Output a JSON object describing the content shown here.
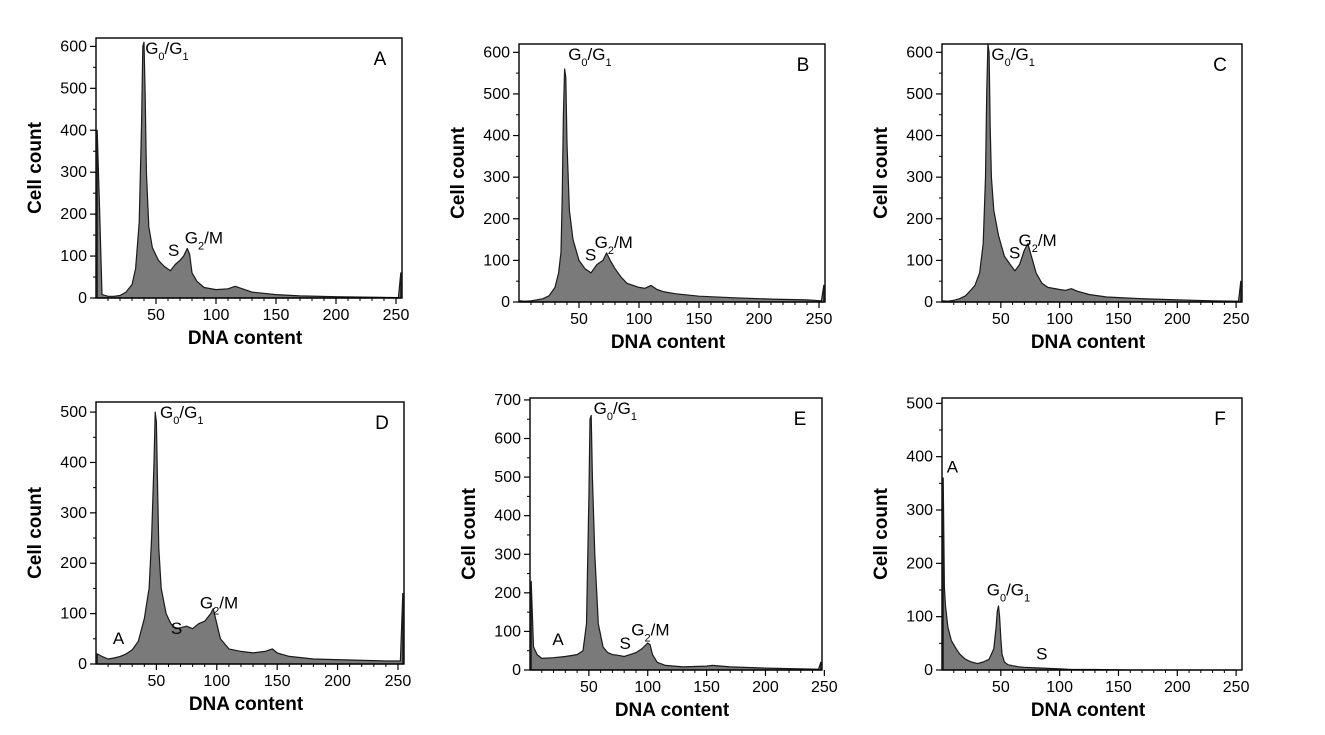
{
  "figure": {
    "colors": {
      "fill": "#7a7a7a",
      "edge": "#1a1a1a",
      "frame": "#000000",
      "background": "#ffffff"
    }
  },
  "chart_data": [
    {
      "panel": "A",
      "type": "area",
      "xlabel": "DNA content",
      "ylabel": "Cell count",
      "xlim": [
        0,
        255
      ],
      "ylim": [
        0,
        620
      ],
      "xticks": [
        50,
        100,
        150,
        200,
        250
      ],
      "yticks": [
        0,
        100,
        200,
        300,
        400,
        500,
        600
      ],
      "x": [
        1,
        3,
        5,
        10,
        15,
        20,
        25,
        30,
        33,
        36,
        38,
        39,
        40,
        41,
        42,
        44,
        47,
        52,
        57,
        62,
        66,
        70,
        73,
        76,
        78,
        80,
        84,
        90,
        100,
        110,
        116,
        122,
        130,
        150,
        170,
        200,
        230,
        252,
        254
      ],
      "y": [
        400,
        210,
        8,
        4,
        4,
        6,
        14,
        32,
        70,
        180,
        420,
        600,
        610,
        480,
        300,
        170,
        120,
        90,
        75,
        65,
        80,
        90,
        100,
        118,
        105,
        60,
        40,
        25,
        20,
        22,
        28,
        22,
        14,
        8,
        5,
        3,
        2,
        1,
        60
      ],
      "annotations": [
        {
          "text": "G0/G1",
          "x": 41,
          "y": 600,
          "parts": [
            [
              "G",
              ""
            ],
            [
              "0",
              "sub"
            ],
            [
              "/G",
              ""
            ],
            [
              "1",
              "sub"
            ]
          ]
        },
        {
          "text": "S",
          "x": 60,
          "y": 100,
          "parts": [
            [
              "S",
              ""
            ]
          ]
        },
        {
          "text": "G2/M",
          "x": 74,
          "y": 130,
          "parts": [
            [
              "G",
              ""
            ],
            [
              "2",
              "sub"
            ],
            [
              "/M",
              ""
            ]
          ]
        }
      ]
    },
    {
      "panel": "B",
      "type": "area",
      "xlabel": "DNA content",
      "ylabel": "Cell count",
      "xlim": [
        0,
        255
      ],
      "ylim": [
        0,
        620
      ],
      "xticks": [
        50,
        100,
        150,
        200,
        250
      ],
      "yticks": [
        0,
        100,
        200,
        300,
        400,
        500,
        600
      ],
      "x": [
        1,
        5,
        10,
        15,
        20,
        25,
        30,
        33,
        35,
        36,
        37,
        38,
        39,
        40,
        42,
        45,
        50,
        55,
        60,
        65,
        70,
        73,
        76,
        80,
        85,
        90,
        100,
        105,
        110,
        115,
        120,
        130,
        150,
        180,
        210,
        240,
        252,
        254
      ],
      "y": [
        3,
        2,
        3,
        5,
        8,
        15,
        35,
        70,
        120,
        250,
        450,
        560,
        540,
        380,
        220,
        150,
        100,
        80,
        70,
        90,
        100,
        118,
        100,
        80,
        60,
        45,
        35,
        33,
        40,
        30,
        25,
        20,
        14,
        10,
        7,
        5,
        3,
        40
      ],
      "annotations": [
        {
          "text": "G0/G1",
          "x": 41,
          "y": 600,
          "parts": [
            [
              "G",
              ""
            ],
            [
              "0",
              "sub"
            ],
            [
              "/G",
              ""
            ],
            [
              "1",
              "sub"
            ]
          ]
        },
        {
          "text": "S",
          "x": 55,
          "y": 100,
          "parts": [
            [
              "S",
              ""
            ]
          ]
        },
        {
          "text": "G2/M",
          "x": 63,
          "y": 130,
          "parts": [
            [
              "G",
              ""
            ],
            [
              "2",
              "sub"
            ],
            [
              "/M",
              ""
            ]
          ]
        }
      ]
    },
    {
      "panel": "C",
      "type": "area",
      "xlabel": "DNA content",
      "ylabel": "Cell count",
      "xlim": [
        0,
        255
      ],
      "ylim": [
        0,
        620
      ],
      "xticks": [
        50,
        100,
        150,
        200,
        250
      ],
      "yticks": [
        0,
        100,
        200,
        300,
        400,
        500,
        600
      ],
      "x": [
        1,
        5,
        10,
        15,
        20,
        25,
        28,
        32,
        35,
        37,
        38,
        39,
        40,
        41,
        42,
        44,
        48,
        53,
        58,
        62,
        66,
        70,
        73,
        76,
        80,
        85,
        90,
        100,
        105,
        110,
        115,
        125,
        140,
        170,
        200,
        230,
        252,
        254
      ],
      "y": [
        3,
        2,
        4,
        8,
        15,
        30,
        40,
        70,
        140,
        300,
        500,
        620,
        600,
        420,
        300,
        220,
        160,
        110,
        90,
        75,
        90,
        125,
        140,
        110,
        70,
        45,
        35,
        30,
        28,
        32,
        26,
        18,
        12,
        8,
        5,
        3,
        2,
        50
      ],
      "annotations": [
        {
          "text": "G0/G1",
          "x": 42,
          "y": 600,
          "parts": [
            [
              "G",
              ""
            ],
            [
              "0",
              "sub"
            ],
            [
              "/G",
              ""
            ],
            [
              "1",
              "sub"
            ]
          ]
        },
        {
          "text": "S",
          "x": 57,
          "y": 105,
          "parts": [
            [
              "S",
              ""
            ]
          ]
        },
        {
          "text": "G2/M",
          "x": 65,
          "y": 135,
          "parts": [
            [
              "G",
              ""
            ],
            [
              "2",
              "sub"
            ],
            [
              "/M",
              ""
            ]
          ]
        }
      ]
    },
    {
      "panel": "D",
      "type": "area",
      "xlabel": "DNA content",
      "ylabel": "Cell count",
      "xlim": [
        0,
        255
      ],
      "ylim": [
        0,
        520
      ],
      "xticks": [
        50,
        100,
        150,
        200,
        250
      ],
      "yticks": [
        0,
        100,
        200,
        300,
        400,
        500
      ],
      "x": [
        1,
        5,
        10,
        15,
        20,
        25,
        30,
        35,
        40,
        44,
        46,
        48,
        49,
        50,
        51,
        52,
        54,
        58,
        62,
        66,
        70,
        75,
        80,
        85,
        90,
        95,
        97,
        99,
        101,
        103,
        110,
        120,
        130,
        140,
        146,
        150,
        160,
        180,
        210,
        240,
        252,
        254
      ],
      "y": [
        20,
        15,
        10,
        12,
        15,
        20,
        28,
        45,
        90,
        150,
        250,
        400,
        500,
        480,
        350,
        230,
        150,
        100,
        80,
        70,
        72,
        75,
        70,
        80,
        85,
        100,
        110,
        90,
        70,
        50,
        30,
        25,
        22,
        25,
        30,
        22,
        15,
        10,
        8,
        6,
        6,
        140
      ],
      "annotations": [
        {
          "text": "G0/G1",
          "x": 53,
          "y": 505,
          "parts": [
            [
              "G",
              ""
            ],
            [
              "0",
              "sub"
            ],
            [
              "/G",
              ""
            ],
            [
              "1",
              "sub"
            ]
          ]
        },
        {
          "text": "A",
          "x": 14,
          "y": 40,
          "parts": [
            [
              "A",
              ""
            ]
          ]
        },
        {
          "text": "S",
          "x": 62,
          "y": 60,
          "parts": [
            [
              "S",
              ""
            ]
          ]
        },
        {
          "text": "G2/M",
          "x": 86,
          "y": 110,
          "parts": [
            [
              "G",
              ""
            ],
            [
              "2",
              "sub"
            ],
            [
              "/M",
              ""
            ]
          ]
        }
      ]
    },
    {
      "panel": "E",
      "type": "area",
      "xlabel": "DNA content",
      "ylabel": "Cell count",
      "xlim": [
        0,
        248
      ],
      "ylim": [
        0,
        705
      ],
      "xticks": [
        50,
        100,
        150,
        200,
        250
      ],
      "yticks": [
        0,
        100,
        200,
        300,
        400,
        500,
        600,
        700
      ],
      "x": [
        1,
        3,
        6,
        10,
        20,
        30,
        40,
        45,
        48,
        50,
        51,
        52,
        53,
        55,
        58,
        62,
        66,
        70,
        75,
        80,
        85,
        90,
        95,
        100,
        102,
        104,
        108,
        115,
        130,
        150,
        155,
        170,
        200,
        230,
        245,
        247
      ],
      "y": [
        230,
        60,
        40,
        30,
        32,
        35,
        40,
        50,
        120,
        450,
        650,
        660,
        500,
        300,
        120,
        60,
        45,
        40,
        38,
        35,
        40,
        45,
        55,
        70,
        65,
        40,
        20,
        12,
        8,
        10,
        12,
        8,
        5,
        3,
        2,
        20
      ],
      "annotations": [
        {
          "text": "G0/G1",
          "x": 54,
          "y": 690,
          "parts": [
            [
              "G",
              ""
            ],
            [
              "0",
              "sub"
            ],
            [
              "/G",
              ""
            ],
            [
              "1",
              "sub"
            ]
          ]
        },
        {
          "text": "A",
          "x": 19,
          "y": 65,
          "parts": [
            [
              "A",
              ""
            ]
          ]
        },
        {
          "text": "S",
          "x": 76,
          "y": 55,
          "parts": [
            [
              "S",
              ""
            ]
          ]
        },
        {
          "text": "G2/M",
          "x": 86,
          "y": 90,
          "parts": [
            [
              "G",
              ""
            ],
            [
              "2",
              "sub"
            ],
            [
              "/M",
              ""
            ]
          ]
        }
      ]
    },
    {
      "panel": "F",
      "type": "area",
      "xlabel": "DNA content",
      "ylabel": "Cell count",
      "xlim": [
        0,
        255
      ],
      "ylim": [
        0,
        510
      ],
      "xticks": [
        50,
        100,
        150,
        200,
        250
      ],
      "yticks": [
        0,
        100,
        200,
        300,
        400,
        500
      ],
      "x": [
        1,
        2,
        3,
        5,
        8,
        12,
        15,
        20,
        25,
        30,
        35,
        40,
        44,
        46,
        47,
        48,
        49,
        50,
        51,
        53,
        56,
        60,
        65,
        70,
        80,
        90,
        100,
        110,
        130,
        160,
        200,
        250
      ],
      "y": [
        360,
        155,
        120,
        80,
        55,
        40,
        30,
        20,
        15,
        12,
        15,
        20,
        40,
        80,
        110,
        120,
        100,
        60,
        30,
        15,
        10,
        8,
        6,
        5,
        4,
        3,
        2,
        1,
        1,
        0,
        0,
        0
      ],
      "annotations": [
        {
          "text": "A",
          "x": 4,
          "y": 370,
          "parts": [
            [
              "A",
              ""
            ]
          ]
        },
        {
          "text": "G0/G1",
          "x": 38,
          "y": 140,
          "parts": [
            [
              "G",
              ""
            ],
            [
              "0",
              "sub"
            ],
            [
              "/G",
              ""
            ],
            [
              "1",
              "sub"
            ]
          ]
        },
        {
          "text": "S",
          "x": 80,
          "y": 20,
          "parts": [
            [
              "S",
              ""
            ]
          ]
        }
      ]
    }
  ]
}
